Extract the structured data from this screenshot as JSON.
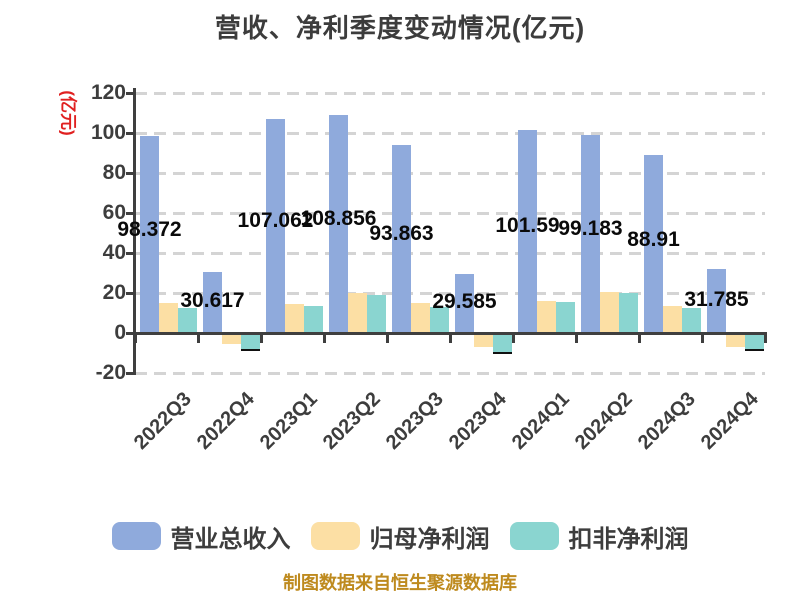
{
  "title": "营收、净利季度变动情况(亿元)",
  "y_axis_name": "(亿元)",
  "footer": "制图数据来自恒生聚源数据库",
  "colors": {
    "y_axis_name_red": "#E02020",
    "footer_gold": "#BE8A1E",
    "title_text": "#3C3C3C",
    "axis_text": "#3D3D3D"
  },
  "chart_data": {
    "type": "bar",
    "categories": [
      "2022Q3",
      "2022Q4",
      "2023Q1",
      "2023Q2",
      "2023Q3",
      "2023Q4",
      "2024Q1",
      "2024Q2",
      "2024Q3",
      "2024Q4"
    ],
    "series": [
      {
        "name": "营业总收入",
        "key": "revenue",
        "color": "#8FAADC",
        "values": [
          98.372,
          30.617,
          107.062,
          108.856,
          93.863,
          29.585,
          101.59,
          99.183,
          88.91,
          31.785
        ],
        "bar_labels": [
          "98.372",
          "30.617",
          "107.062",
          "108.856",
          "93.863",
          "29.585",
          "101.59",
          "99.183",
          "88.91",
          "31.785"
        ]
      },
      {
        "name": "归母净利润",
        "key": "net-profit",
        "color": "#FCDFA4",
        "values": [
          15,
          -5.5,
          14.5,
          20,
          15,
          -7,
          16,
          20.5,
          13.5,
          -7
        ]
      },
      {
        "name": "扣非净利润",
        "key": "non-gaap-profit",
        "color": "#8AD5D0",
        "values": [
          12.5,
          -8,
          13.5,
          19,
          13,
          -9.5,
          15.5,
          20,
          12.5,
          -8
        ]
      }
    ],
    "ylim": [
      -20,
      120
    ],
    "yticks": [
      120,
      100,
      80,
      60,
      40,
      20,
      0,
      -20
    ],
    "grid": "dashed horizontal gridlines",
    "legend_position": "bottom",
    "value_labels": "revenue series only, centered inside bars"
  }
}
